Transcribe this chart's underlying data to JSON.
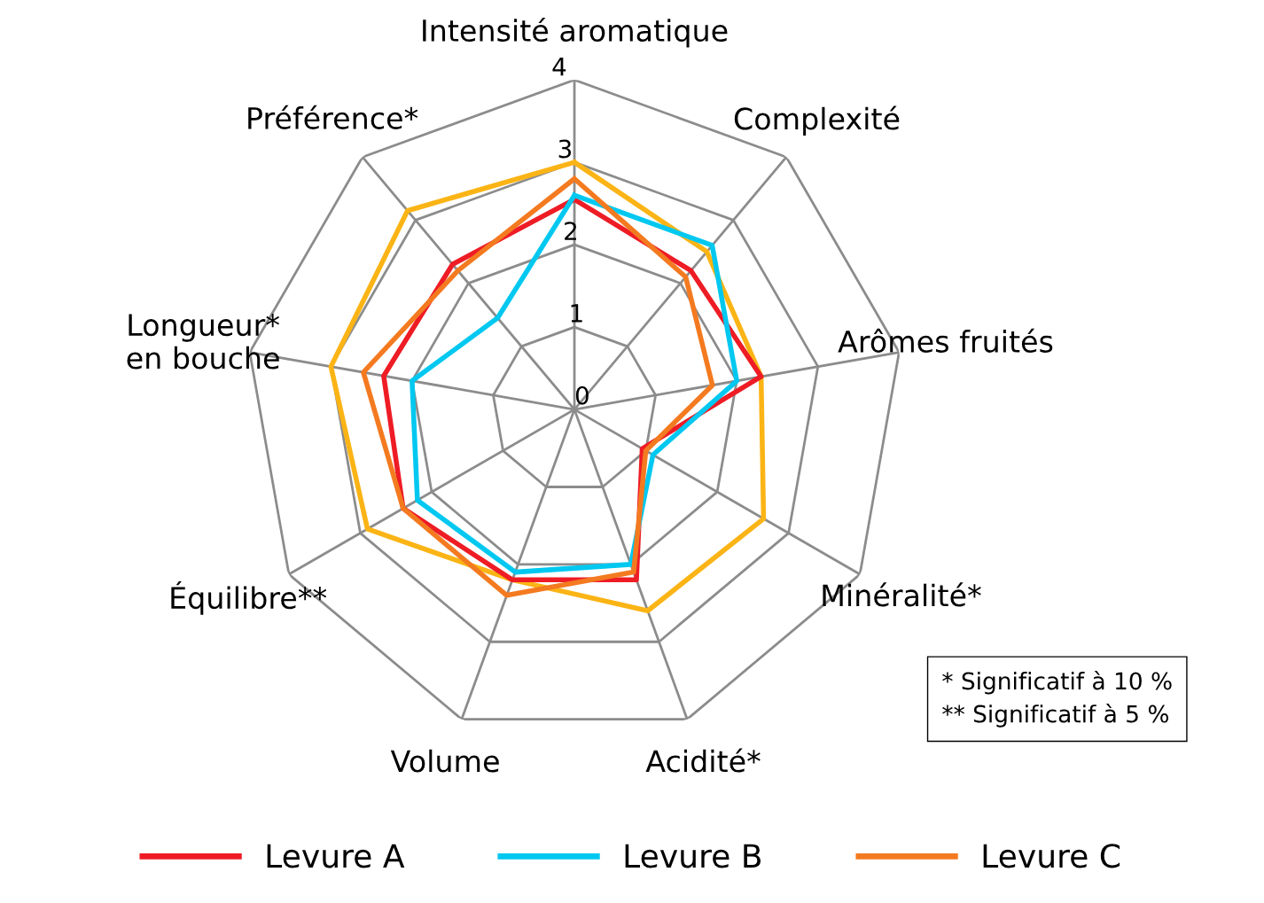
{
  "chart_data": {
    "type": "radar",
    "categories": [
      "Intensité aromatique",
      "Complexité",
      "Arômes fruités",
      "Minéralité*",
      "Acidité*",
      "Volume",
      "Équilibre**",
      "Longueur*\nen bouche",
      "Préférence*"
    ],
    "series": [
      {
        "color": "#fbb415",
        "values": [
          3.0,
          2.5,
          2.3,
          2.65,
          2.6,
          2.2,
          2.9,
          3.0,
          3.15
        ]
      },
      {
        "name": "Levure A",
        "color": "#ee1c25",
        "values": [
          2.55,
          2.2,
          2.3,
          0.95,
          2.2,
          2.2,
          2.4,
          2.35,
          2.3
        ]
      },
      {
        "name": "Levure B",
        "color": "#00c8f0",
        "values": [
          2.6,
          2.6,
          2.0,
          1.1,
          2.0,
          2.1,
          2.2,
          2.0,
          1.45
        ]
      },
      {
        "name": "Levure C",
        "color": "#f47a20",
        "values": [
          2.8,
          2.1,
          1.7,
          1.0,
          2.1,
          2.4,
          2.4,
          2.6,
          2.2
        ]
      }
    ],
    "ylim": [
      0,
      4
    ],
    "yticks": [
      0,
      1,
      2,
      3,
      4
    ],
    "grid": true,
    "legend": "bottom",
    "line_style": "solid",
    "annotations": [
      "* Significatif à 10 %",
      "** Significatif à 5 %"
    ]
  }
}
